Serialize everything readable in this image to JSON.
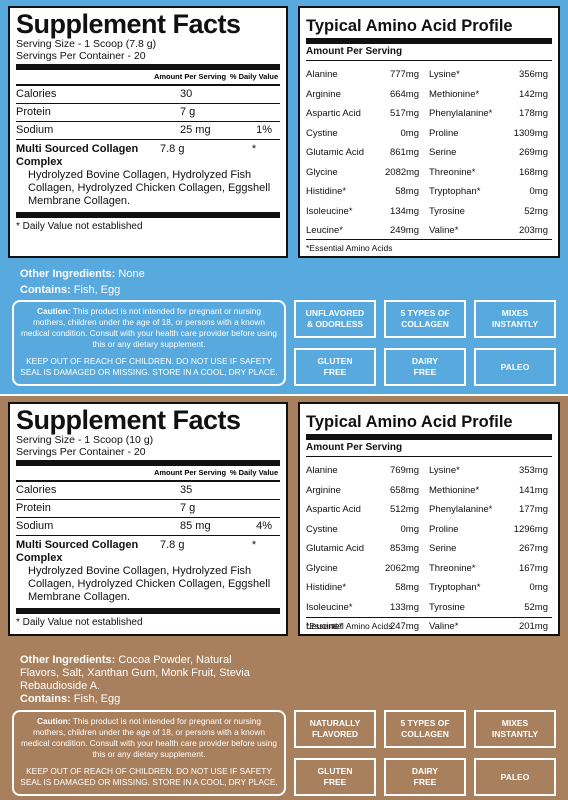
{
  "panels": [
    {
      "supplement": {
        "title": "Supplement Facts",
        "serving_size": "Serving Size - 1 Scoop (7.8 g)",
        "servings_per_container": "Servings Per Container - 20",
        "col_amount": "Amount Per Serving",
        "col_dv": "% Daily Value",
        "rows": [
          {
            "name": "Calories",
            "amount": "30",
            "dv": ""
          },
          {
            "name": "Protein",
            "amount": "7 g",
            "dv": ""
          },
          {
            "name": "Sodium",
            "amount": "25 mg",
            "dv": "1%"
          }
        ],
        "blend_name": "Multi Sourced Collagen Complex",
        "blend_amount": "7.8 g",
        "blend_dv": "*",
        "blend_desc": "Hydrolyzed Bovine Collagen, Hydrolyzed Fish Collagen, Hydrolyzed Chicken Collagen, Eggshell Membrane Collagen.",
        "footnote": "* Daily Value not established"
      },
      "amino": {
        "title": "Typical Amino Acid Profile",
        "subtitle": "Amount Per Serving",
        "left": [
          {
            "name": "Alanine",
            "value": "777mg"
          },
          {
            "name": "Arginine",
            "value": "664mg"
          },
          {
            "name": "Aspartic Acid",
            "value": "517mg"
          },
          {
            "name": "Cystine",
            "value": "0mg"
          },
          {
            "name": "Glutamic Acid",
            "value": "861mg"
          },
          {
            "name": "Glycine",
            "value": "2082mg"
          },
          {
            "name": "Histidine*",
            "value": "58mg"
          },
          {
            "name": "Isoleucine*",
            "value": "134mg"
          },
          {
            "name": "Leucine*",
            "value": "249mg"
          }
        ],
        "right": [
          {
            "name": "Lysine*",
            "value": "356mg"
          },
          {
            "name": "Methionine*",
            "value": "142mg"
          },
          {
            "name": "Phenylalanine*",
            "value": "178mg"
          },
          {
            "name": "Proline",
            "value": "1309mg"
          },
          {
            "name": "Serine",
            "value": "269mg"
          },
          {
            "name": "Threonine*",
            "value": "168mg"
          },
          {
            "name": "Tryptophan*",
            "value": "0mg"
          },
          {
            "name": "Tyrosine",
            "value": "52mg"
          },
          {
            "name": "Valine*",
            "value": "203mg"
          }
        ],
        "footnote": "*Essential Amino Acids"
      },
      "other_label": "Other Ingredients:",
      "other_value": " None",
      "contains_label": "Contains:",
      "contains_value": " Fish, Egg",
      "caution_label": "Caution:",
      "caution_text": " This product is not intended for pregnant or nursing mothers, children under the age of 18, or persons with a known medical condition. Consult with your health care provider before using this or any dietary supplement.",
      "warning_text": "KEEP OUT OF REACH OF CHILDREN. DO NOT USE IF SAFETY SEAL IS DAMAGED OR MISSING. STORE IN A COOL, DRY PLACE.",
      "badges": [
        "UNFLAVORED\n& ODORLESS",
        "5 TYPES OF\nCOLLAGEN",
        "MIXES\nINSTANTLY",
        "GLUTEN\nFREE",
        "DAIRY\nFREE",
        "PALEO"
      ]
    },
    {
      "supplement": {
        "title": "Supplement Facts",
        "serving_size": "Serving Size - 1 Scoop (10 g)",
        "servings_per_container": "Servings Per Container - 20",
        "col_amount": "Amount Per Serving",
        "col_dv": "% Daily Value",
        "rows": [
          {
            "name": "Calories",
            "amount": "35",
            "dv": ""
          },
          {
            "name": "Protein",
            "amount": "7 g",
            "dv": ""
          },
          {
            "name": "Sodium",
            "amount": "85 mg",
            "dv": "4%"
          }
        ],
        "blend_name": "Multi Sourced Collagen Complex",
        "blend_amount": "7.8 g",
        "blend_dv": "*",
        "blend_desc": "Hydrolyzed Bovine Collagen, Hydrolyzed Fish Collagen, Hydrolyzed Chicken Collagen, Eggshell Membrane Collagen.",
        "footnote": "* Daily Value not established"
      },
      "amino": {
        "title": "Typical Amino Acid Profile",
        "subtitle": "Amount Per Serving",
        "left": [
          {
            "name": "Alanine",
            "value": "769mg"
          },
          {
            "name": "Arginine",
            "value": "658mg"
          },
          {
            "name": "Aspartic Acid",
            "value": "512mg"
          },
          {
            "name": "Cystine",
            "value": "0mg"
          },
          {
            "name": "Glutamic Acid",
            "value": "853mg"
          },
          {
            "name": "Glycine",
            "value": "2062mg"
          },
          {
            "name": "Histidine*",
            "value": "58mg"
          },
          {
            "name": "Isoleucine*",
            "value": "133mg"
          },
          {
            "name": "Leucine*",
            "value": "247mg"
          }
        ],
        "right": [
          {
            "name": "Lysine*",
            "value": "353mg"
          },
          {
            "name": "Methionine*",
            "value": "141mg"
          },
          {
            "name": "Phenylalanine*",
            "value": "177mg"
          },
          {
            "name": "Proline",
            "value": "1296mg"
          },
          {
            "name": "Serine",
            "value": "267mg"
          },
          {
            "name": "Threonine*",
            "value": "167mg"
          },
          {
            "name": "Tryptophan*",
            "value": "0mg"
          },
          {
            "name": "Tyrosine",
            "value": "52mg"
          },
          {
            "name": "Valine*",
            "value": "201mg"
          }
        ],
        "footnote": "*Essential Amino Acids"
      },
      "other_label": "Other Ingredients:",
      "other_value": " Cocoa Powder, Natural Flavors, Salt, Xanthan Gum, Monk Fruit, Stevia Rebaudioside A.",
      "contains_label": "Contains:",
      "contains_value": " Fish, Egg",
      "caution_label": "Caution:",
      "caution_text": " This product is not intended for pregnant or nursing mothers, children under the age of 18, or persons with a known medical condition. Consult with your health care provider before using this or any dietary supplement.",
      "warning_text": "KEEP OUT OF REACH OF CHILDREN. DO NOT USE IF SAFETY SEAL IS DAMAGED OR MISSING. STORE IN A COOL, DRY PLACE.",
      "badges": [
        "NATURALLY\nFLAVORED",
        "5 TYPES OF\nCOLLAGEN",
        "MIXES\nINSTANTLY",
        "GLUTEN\nFREE",
        "DAIRY\nFREE",
        "PALEO"
      ]
    }
  ],
  "colors": {
    "panel_1_bg": "#58a9dd",
    "panel_2_bg": "#a9805d"
  }
}
